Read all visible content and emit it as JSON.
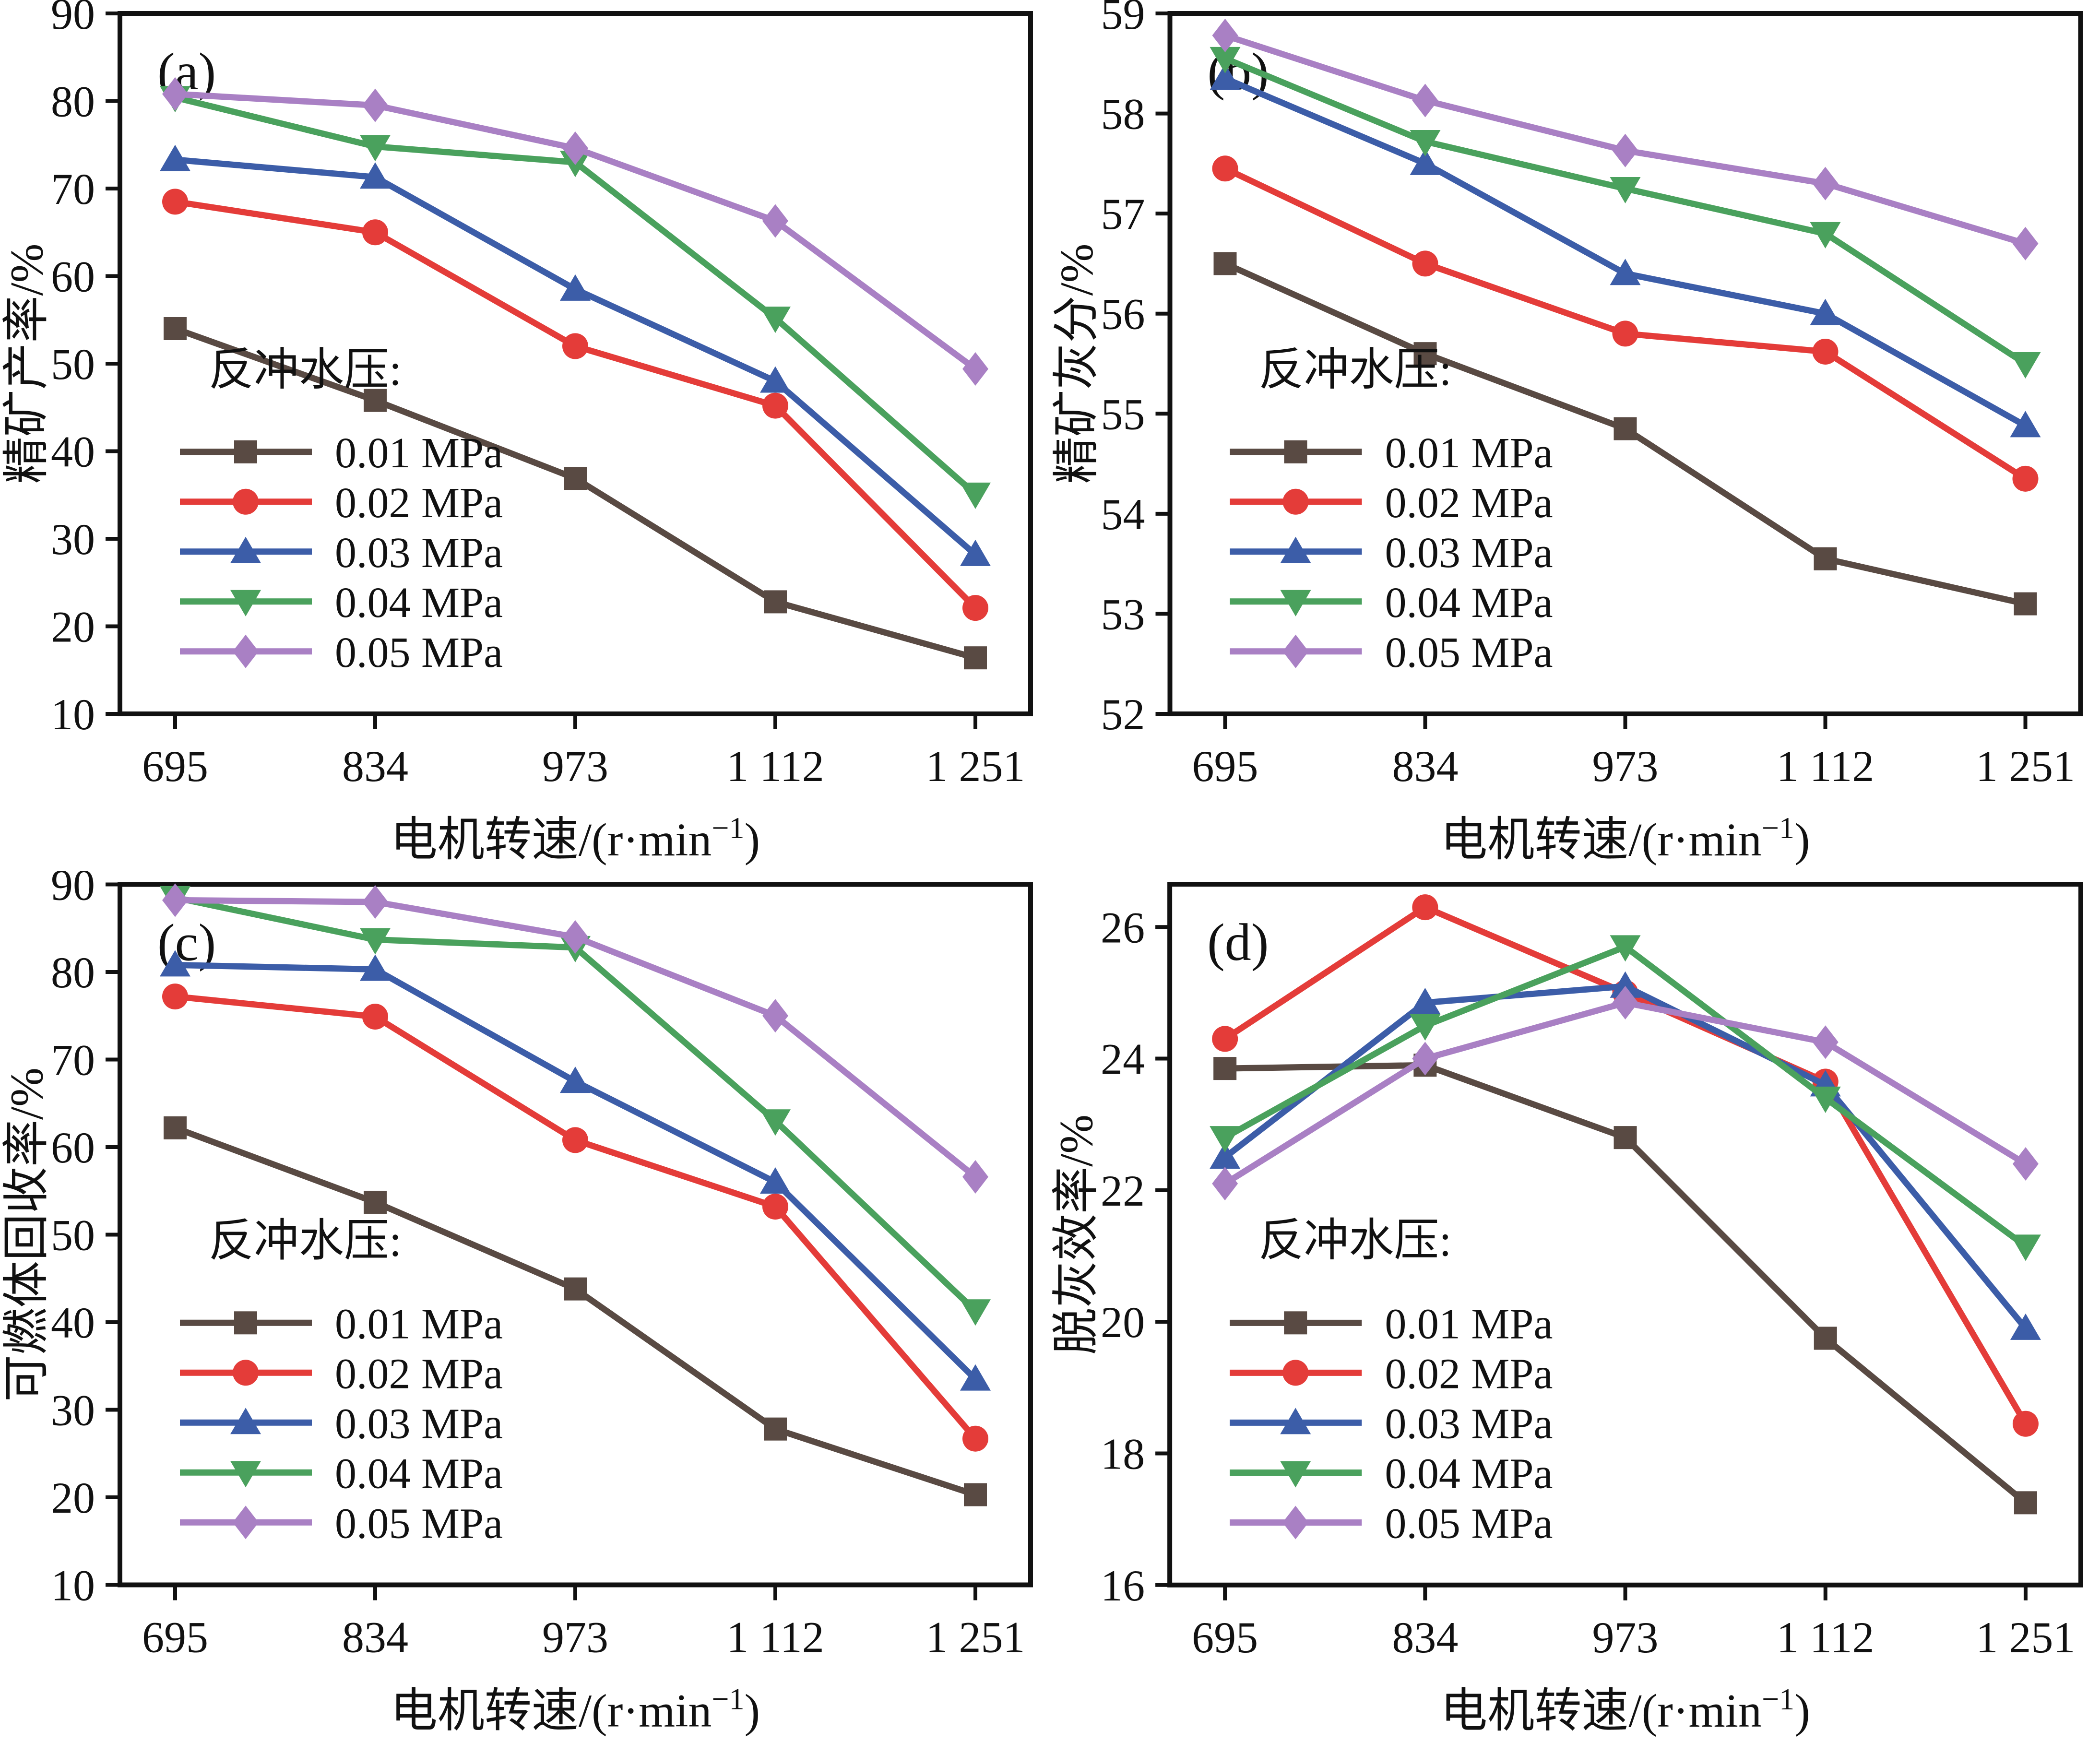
{
  "page": {
    "background": "#ffffff",
    "text_color": "#111111"
  },
  "legend": {
    "title": "反冲水压:",
    "items": [
      "0.01 MPa",
      "0.02 MPa",
      "0.03 MPa",
      "0.04 MPa",
      "0.05 MPa"
    ]
  },
  "chart_data": [
    {
      "type": "line",
      "panel_label": "(a)",
      "ylabel": "精矿产率/%",
      "xlabel": "电机转速/(r·min⁻¹)",
      "xlabel_parts": {
        "base": "电机转速/(r·min",
        "sup": "−1",
        "close": ")"
      },
      "categories": [
        "695",
        "834",
        "973",
        "1 112",
        "1 251"
      ],
      "x_values": [
        695,
        834,
        973,
        1112,
        1251
      ],
      "ylim": [
        10,
        90
      ],
      "yticks": [
        10,
        20,
        30,
        40,
        50,
        60,
        70,
        80,
        90
      ],
      "grid": false,
      "legend_position": "lower-left",
      "legend_title": "反冲水压:",
      "series": [
        {
          "name": "0.01 MPa",
          "color": "#594a43",
          "marker": "square",
          "values": [
            54.0,
            45.8,
            36.9,
            22.8,
            16.4
          ]
        },
        {
          "name": "0.02 MPa",
          "color": "#e43c39",
          "marker": "circle",
          "values": [
            68.5,
            65.0,
            52.0,
            45.2,
            22.1
          ]
        },
        {
          "name": "0.03 MPa",
          "color": "#3c5da8",
          "marker": "triangle-up",
          "values": [
            73.3,
            71.3,
            58.5,
            48.0,
            28.2
          ]
        },
        {
          "name": "0.04 MPa",
          "color": "#4aa15d",
          "marker": "triangle-down",
          "values": [
            80.4,
            74.8,
            73.0,
            55.2,
            35.1
          ]
        },
        {
          "name": "0.05 MPa",
          "color": "#a980c4",
          "marker": "diamond",
          "values": [
            80.8,
            79.5,
            74.6,
            66.3,
            49.4
          ]
        }
      ]
    },
    {
      "type": "line",
      "panel_label": "(b)",
      "ylabel": "精矿灰分/%",
      "xlabel": "电机转速/(r·min⁻¹)",
      "xlabel_parts": {
        "base": "电机转速/(r·min",
        "sup": "−1",
        "close": ")"
      },
      "categories": [
        "695",
        "834",
        "973",
        "1 112",
        "1 251"
      ],
      "x_values": [
        695,
        834,
        973,
        1112,
        1251
      ],
      "ylim": [
        52,
        59
      ],
      "yticks": [
        52,
        53,
        54,
        55,
        56,
        57,
        58,
        59
      ],
      "grid": false,
      "legend_position": "lower-left",
      "legend_title": "反冲水压:",
      "series": [
        {
          "name": "0.01 MPa",
          "color": "#594a43",
          "marker": "square",
          "values": [
            56.5,
            55.6,
            54.85,
            53.55,
            53.1
          ]
        },
        {
          "name": "0.02 MPa",
          "color": "#e43c39",
          "marker": "circle",
          "values": [
            57.45,
            56.5,
            55.8,
            55.62,
            54.35
          ]
        },
        {
          "name": "0.03 MPa",
          "color": "#3c5da8",
          "marker": "triangle-up",
          "values": [
            58.35,
            57.5,
            56.4,
            56.0,
            54.88
          ]
        },
        {
          "name": "0.04 MPa",
          "color": "#4aa15d",
          "marker": "triangle-down",
          "values": [
            58.55,
            57.72,
            57.25,
            56.8,
            55.5
          ]
        },
        {
          "name": "0.05 MPa",
          "color": "#a980c4",
          "marker": "diamond",
          "values": [
            58.78,
            58.13,
            57.63,
            57.3,
            56.7
          ]
        }
      ]
    },
    {
      "type": "line",
      "panel_label": "(c)",
      "ylabel": "可燃体回收率/%",
      "xlabel": "电机转速/(r·min⁻¹)",
      "xlabel_parts": {
        "base": "电机转速/(r·min",
        "sup": "−1",
        "close": ")"
      },
      "categories": [
        "695",
        "834",
        "973",
        "1 112",
        "1 251"
      ],
      "x_values": [
        695,
        834,
        973,
        1112,
        1251
      ],
      "ylim": [
        10,
        90
      ],
      "yticks": [
        10,
        20,
        30,
        40,
        50,
        60,
        70,
        80,
        90
      ],
      "grid": false,
      "legend_position": "lower-left",
      "legend_title": "反冲水压:",
      "series": [
        {
          "name": "0.01 MPa",
          "color": "#594a43",
          "marker": "square",
          "values": [
            62.2,
            53.7,
            43.8,
            27.8,
            20.3
          ]
        },
        {
          "name": "0.02 MPa",
          "color": "#e43c39",
          "marker": "circle",
          "values": [
            77.2,
            74.9,
            60.8,
            53.2,
            26.7
          ]
        },
        {
          "name": "0.03 MPa",
          "color": "#3c5da8",
          "marker": "triangle-up",
          "values": [
            80.8,
            80.3,
            67.5,
            56.0,
            33.5
          ]
        },
        {
          "name": "0.04 MPa",
          "color": "#4aa15d",
          "marker": "triangle-down",
          "values": [
            88.5,
            83.7,
            82.8,
            63.0,
            41.3
          ]
        },
        {
          "name": "0.05 MPa",
          "color": "#a980c4",
          "marker": "diamond",
          "values": [
            88.2,
            88.0,
            84.0,
            75.0,
            56.6
          ]
        }
      ]
    },
    {
      "type": "line",
      "panel_label": "(d)",
      "ylabel": "脱灰效率/%",
      "xlabel": "电机转速/(r·min⁻¹)",
      "xlabel_parts": {
        "base": "电机转速/(r·min",
        "sup": "−1",
        "close": ")"
      },
      "categories": [
        "695",
        "834",
        "973",
        "1 112",
        "1 251"
      ],
      "x_values": [
        695,
        834,
        973,
        1112,
        1251
      ],
      "ylim": [
        16,
        26.65
      ],
      "yticks": [
        16,
        18,
        20,
        22,
        24,
        26
      ],
      "grid": false,
      "legend_position": "lower-left",
      "legend_title": "反冲水压:",
      "series": [
        {
          "name": "0.01 MPa",
          "color": "#594a43",
          "marker": "square",
          "values": [
            23.85,
            23.9,
            22.8,
            19.75,
            17.25
          ]
        },
        {
          "name": "0.02 MPa",
          "color": "#e43c39",
          "marker": "circle",
          "values": [
            24.3,
            26.3,
            25.0,
            23.65,
            18.45
          ]
        },
        {
          "name": "0.03 MPa",
          "color": "#3c5da8",
          "marker": "triangle-up",
          "values": [
            22.5,
            24.85,
            25.1,
            23.6,
            19.9
          ]
        },
        {
          "name": "0.04 MPa",
          "color": "#4aa15d",
          "marker": "triangle-down",
          "values": [
            22.8,
            24.5,
            25.7,
            23.4,
            21.15
          ]
        },
        {
          "name": "0.05 MPa",
          "color": "#a980c4",
          "marker": "diamond",
          "values": [
            22.1,
            24.0,
            24.85,
            24.25,
            22.4
          ]
        }
      ]
    }
  ]
}
